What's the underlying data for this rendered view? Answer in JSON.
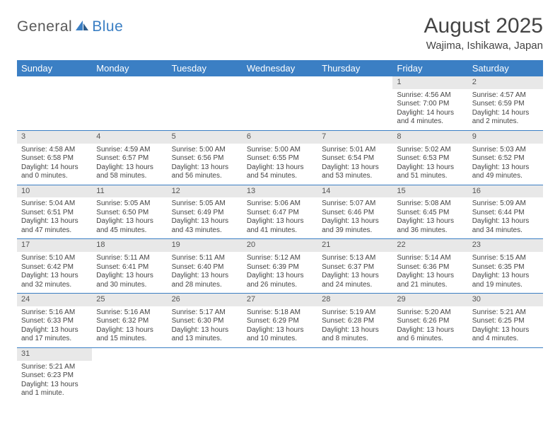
{
  "logo": {
    "word1": "General",
    "word2": "Blue"
  },
  "title": "August 2025",
  "location": "Wajima, Ishikawa, Japan",
  "colors": {
    "header_bg": "#3b7fc4",
    "header_text": "#ffffff",
    "daynum_bg": "#e8e8e8",
    "row_divider": "#3b7fc4",
    "text": "#444444",
    "background": "#ffffff"
  },
  "days_of_week": [
    "Sunday",
    "Monday",
    "Tuesday",
    "Wednesday",
    "Thursday",
    "Friday",
    "Saturday"
  ],
  "weeks": [
    [
      null,
      null,
      null,
      null,
      null,
      {
        "n": "1",
        "sr": "Sunrise: 4:56 AM",
        "ss": "Sunset: 7:00 PM",
        "d1": "Daylight: 14 hours",
        "d2": "and 4 minutes."
      },
      {
        "n": "2",
        "sr": "Sunrise: 4:57 AM",
        "ss": "Sunset: 6:59 PM",
        "d1": "Daylight: 14 hours",
        "d2": "and 2 minutes."
      }
    ],
    [
      {
        "n": "3",
        "sr": "Sunrise: 4:58 AM",
        "ss": "Sunset: 6:58 PM",
        "d1": "Daylight: 14 hours",
        "d2": "and 0 minutes."
      },
      {
        "n": "4",
        "sr": "Sunrise: 4:59 AM",
        "ss": "Sunset: 6:57 PM",
        "d1": "Daylight: 13 hours",
        "d2": "and 58 minutes."
      },
      {
        "n": "5",
        "sr": "Sunrise: 5:00 AM",
        "ss": "Sunset: 6:56 PM",
        "d1": "Daylight: 13 hours",
        "d2": "and 56 minutes."
      },
      {
        "n": "6",
        "sr": "Sunrise: 5:00 AM",
        "ss": "Sunset: 6:55 PM",
        "d1": "Daylight: 13 hours",
        "d2": "and 54 minutes."
      },
      {
        "n": "7",
        "sr": "Sunrise: 5:01 AM",
        "ss": "Sunset: 6:54 PM",
        "d1": "Daylight: 13 hours",
        "d2": "and 53 minutes."
      },
      {
        "n": "8",
        "sr": "Sunrise: 5:02 AM",
        "ss": "Sunset: 6:53 PM",
        "d1": "Daylight: 13 hours",
        "d2": "and 51 minutes."
      },
      {
        "n": "9",
        "sr": "Sunrise: 5:03 AM",
        "ss": "Sunset: 6:52 PM",
        "d1": "Daylight: 13 hours",
        "d2": "and 49 minutes."
      }
    ],
    [
      {
        "n": "10",
        "sr": "Sunrise: 5:04 AM",
        "ss": "Sunset: 6:51 PM",
        "d1": "Daylight: 13 hours",
        "d2": "and 47 minutes."
      },
      {
        "n": "11",
        "sr": "Sunrise: 5:05 AM",
        "ss": "Sunset: 6:50 PM",
        "d1": "Daylight: 13 hours",
        "d2": "and 45 minutes."
      },
      {
        "n": "12",
        "sr": "Sunrise: 5:05 AM",
        "ss": "Sunset: 6:49 PM",
        "d1": "Daylight: 13 hours",
        "d2": "and 43 minutes."
      },
      {
        "n": "13",
        "sr": "Sunrise: 5:06 AM",
        "ss": "Sunset: 6:47 PM",
        "d1": "Daylight: 13 hours",
        "d2": "and 41 minutes."
      },
      {
        "n": "14",
        "sr": "Sunrise: 5:07 AM",
        "ss": "Sunset: 6:46 PM",
        "d1": "Daylight: 13 hours",
        "d2": "and 39 minutes."
      },
      {
        "n": "15",
        "sr": "Sunrise: 5:08 AM",
        "ss": "Sunset: 6:45 PM",
        "d1": "Daylight: 13 hours",
        "d2": "and 36 minutes."
      },
      {
        "n": "16",
        "sr": "Sunrise: 5:09 AM",
        "ss": "Sunset: 6:44 PM",
        "d1": "Daylight: 13 hours",
        "d2": "and 34 minutes."
      }
    ],
    [
      {
        "n": "17",
        "sr": "Sunrise: 5:10 AM",
        "ss": "Sunset: 6:42 PM",
        "d1": "Daylight: 13 hours",
        "d2": "and 32 minutes."
      },
      {
        "n": "18",
        "sr": "Sunrise: 5:11 AM",
        "ss": "Sunset: 6:41 PM",
        "d1": "Daylight: 13 hours",
        "d2": "and 30 minutes."
      },
      {
        "n": "19",
        "sr": "Sunrise: 5:11 AM",
        "ss": "Sunset: 6:40 PM",
        "d1": "Daylight: 13 hours",
        "d2": "and 28 minutes."
      },
      {
        "n": "20",
        "sr": "Sunrise: 5:12 AM",
        "ss": "Sunset: 6:39 PM",
        "d1": "Daylight: 13 hours",
        "d2": "and 26 minutes."
      },
      {
        "n": "21",
        "sr": "Sunrise: 5:13 AM",
        "ss": "Sunset: 6:37 PM",
        "d1": "Daylight: 13 hours",
        "d2": "and 24 minutes."
      },
      {
        "n": "22",
        "sr": "Sunrise: 5:14 AM",
        "ss": "Sunset: 6:36 PM",
        "d1": "Daylight: 13 hours",
        "d2": "and 21 minutes."
      },
      {
        "n": "23",
        "sr": "Sunrise: 5:15 AM",
        "ss": "Sunset: 6:35 PM",
        "d1": "Daylight: 13 hours",
        "d2": "and 19 minutes."
      }
    ],
    [
      {
        "n": "24",
        "sr": "Sunrise: 5:16 AM",
        "ss": "Sunset: 6:33 PM",
        "d1": "Daylight: 13 hours",
        "d2": "and 17 minutes."
      },
      {
        "n": "25",
        "sr": "Sunrise: 5:16 AM",
        "ss": "Sunset: 6:32 PM",
        "d1": "Daylight: 13 hours",
        "d2": "and 15 minutes."
      },
      {
        "n": "26",
        "sr": "Sunrise: 5:17 AM",
        "ss": "Sunset: 6:30 PM",
        "d1": "Daylight: 13 hours",
        "d2": "and 13 minutes."
      },
      {
        "n": "27",
        "sr": "Sunrise: 5:18 AM",
        "ss": "Sunset: 6:29 PM",
        "d1": "Daylight: 13 hours",
        "d2": "and 10 minutes."
      },
      {
        "n": "28",
        "sr": "Sunrise: 5:19 AM",
        "ss": "Sunset: 6:28 PM",
        "d1": "Daylight: 13 hours",
        "d2": "and 8 minutes."
      },
      {
        "n": "29",
        "sr": "Sunrise: 5:20 AM",
        "ss": "Sunset: 6:26 PM",
        "d1": "Daylight: 13 hours",
        "d2": "and 6 minutes."
      },
      {
        "n": "30",
        "sr": "Sunrise: 5:21 AM",
        "ss": "Sunset: 6:25 PM",
        "d1": "Daylight: 13 hours",
        "d2": "and 4 minutes."
      }
    ],
    [
      {
        "n": "31",
        "sr": "Sunrise: 5:21 AM",
        "ss": "Sunset: 6:23 PM",
        "d1": "Daylight: 13 hours",
        "d2": "and 1 minute."
      },
      null,
      null,
      null,
      null,
      null,
      null
    ]
  ]
}
